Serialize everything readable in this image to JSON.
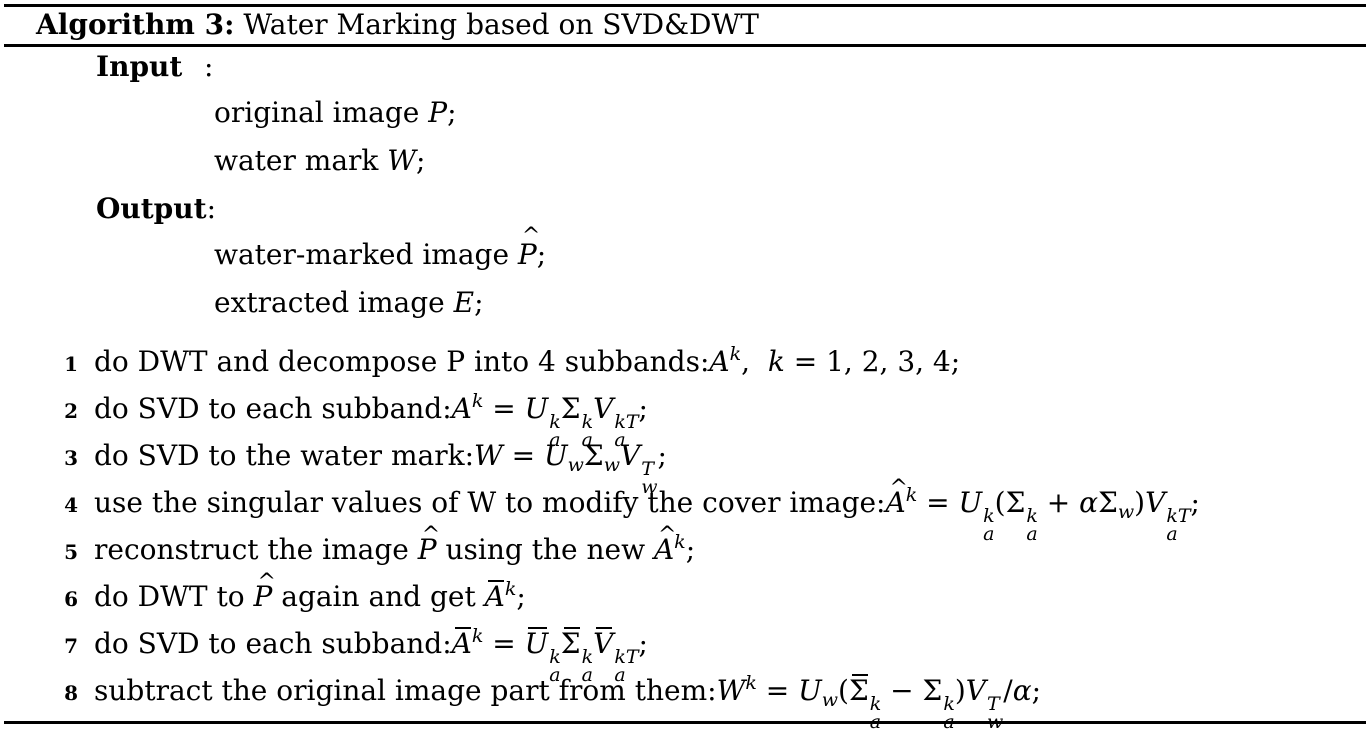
{
  "caption": {
    "label": "Algorithm 3:",
    "title": "Water Marking based on SVD&DWT"
  },
  "input": {
    "heading": "Input",
    "colon": ":",
    "items": [
      {
        "text": "original image ",
        "symbol": "P",
        "end": ";"
      },
      {
        "text": "water mark ",
        "symbol": "W",
        "end": ";"
      }
    ]
  },
  "output": {
    "heading": "Output",
    "colon": ":",
    "items": [
      {
        "text": "water-marked image ",
        "symbol": "P",
        "end": ";"
      },
      {
        "text": "extracted image ",
        "symbol": "E",
        "end": ";"
      }
    ]
  },
  "steps": [
    {
      "num": "1",
      "text": "do DWT and decompose P into 4 subbands:"
    },
    {
      "num": "2",
      "text": "do SVD to each subband:"
    },
    {
      "num": "3",
      "text": "do SVD to the water mark:"
    },
    {
      "num": "4",
      "text": "use the singular values of W to modify the cover image:"
    },
    {
      "num": "5",
      "text": "reconstruct the image "
    },
    {
      "num": "6",
      "text": "do DWT to "
    },
    {
      "num": "7",
      "text": "do SVD to each subband:"
    },
    {
      "num": "8",
      "text": "subtract the original image part from them:"
    }
  ],
  "math": {
    "s1": "k = 1, 2, 3, 4;",
    "s5_mid": " using the new ",
    "s6_mid": " again and get "
  }
}
